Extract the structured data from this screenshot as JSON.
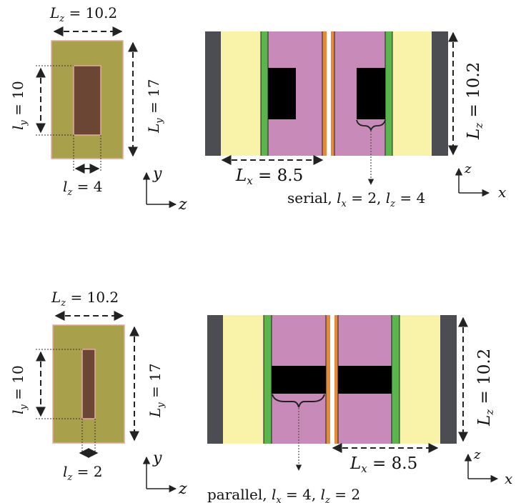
{
  "top": {
    "side": {
      "lz_top": {
        "sym": "L",
        "sub": "z",
        "rest": " = 10.2"
      },
      "ly_vert": {
        "sym": "l",
        "sub": "y",
        "rest": " = 10"
      },
      "Ly_vert": {
        "sym": "L",
        "sub": "y",
        "rest": " = 17"
      },
      "lz_bottom": {
        "sym": "l",
        "sub": "z",
        "rest": " = 4"
      },
      "axes": {
        "up": "y",
        "right": "z"
      }
    },
    "main": {
      "Lx": {
        "sym": "L",
        "sub": "x",
        "rest": " = 8.5"
      },
      "Lz": {
        "sym": "L",
        "sub": "z",
        "rest": " = 10.2"
      },
      "caption": {
        "word": "serial, ",
        "p1": "l",
        "p1sub": "x",
        "p1rest": " = 2, ",
        "p2": "l",
        "p2sub": "z",
        "p2rest": " = 4"
      },
      "axes": {
        "up": "z",
        "right": "x"
      }
    }
  },
  "bottom": {
    "side": {
      "lz_top": {
        "sym": "L",
        "sub": "z",
        "rest": " = 10.2"
      },
      "ly_vert": {
        "sym": "l",
        "sub": "y",
        "rest": " = 10"
      },
      "Ly_vert": {
        "sym": "L",
        "sub": "y",
        "rest": " = 17"
      },
      "lz_bottom": {
        "sym": "l",
        "sub": "z",
        "rest": " = 2"
      },
      "axes": {
        "up": "y",
        "right": "z"
      }
    },
    "main": {
      "Lx": {
        "sym": "L",
        "sub": "x",
        "rest": " = 8.5"
      },
      "Lz": {
        "sym": "L",
        "sub": "z",
        "rest": " = 10.2"
      },
      "caption": {
        "word": "parallel, ",
        "p1": "l",
        "p1sub": "x",
        "p1rest": " = 4, ",
        "p2": "l",
        "p2sub": "z",
        "p2rest": " = 2"
      },
      "axes": {
        "up": "z",
        "right": "x"
      }
    }
  },
  "colors": {
    "olive": "#a8a04a",
    "brown": "#6b4634",
    "pink_border": "#e4a8a0",
    "dark_gray": "#4b4d52",
    "pale_yellow": "#f8f3a8",
    "green": "#5ab54c",
    "mauve": "#c88ab8",
    "orange": "#e68a3a",
    "black": "#000000"
  }
}
